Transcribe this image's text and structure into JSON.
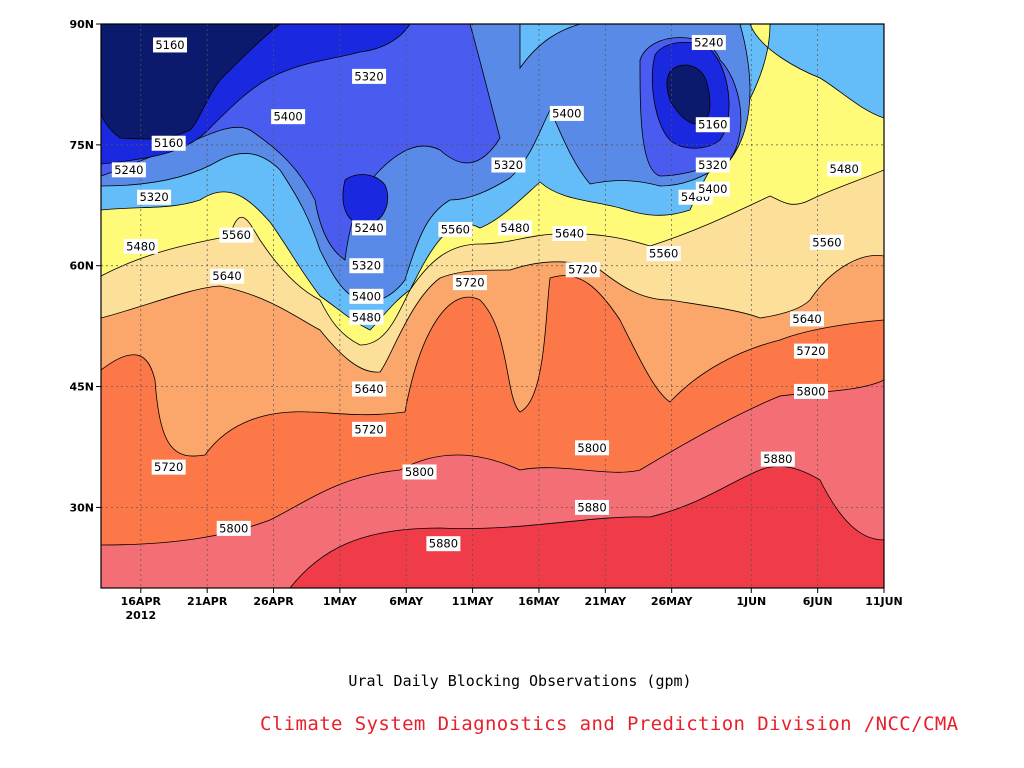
{
  "chart_data": {
    "type": "contour",
    "xlabel": "Ural Daily Blocking Observations (gpm)",
    "credit": "Climate System Diagnostics and Prediction Division /NCC/CMA",
    "x_ticks": [
      "16APR",
      "21APR",
      "26APR",
      "1MAY",
      "6MAY",
      "11MAY",
      "16MAY",
      "21MAY",
      "26MAY",
      "1JUN",
      "6JUN",
      "11JUN"
    ],
    "x_tick_days": [
      16,
      21,
      26,
      31,
      36,
      41,
      46,
      51,
      56,
      62,
      67,
      72
    ],
    "x_year": "2012",
    "xlim_days": [
      13,
      72
    ],
    "ylim_lat": [
      20,
      90
    ],
    "y_ticks": [
      {
        "label": "90N",
        "lat": 90
      },
      {
        "label": "75N",
        "lat": 75
      },
      {
        "label": "60N",
        "lat": 60
      },
      {
        "label": "45N",
        "lat": 45
      },
      {
        "label": "30N",
        "lat": 30
      }
    ],
    "grid": "dotted",
    "levels": [
      5160,
      5240,
      5320,
      5400,
      5480,
      5560,
      5640,
      5720,
      5800,
      5880
    ],
    "fill_colors": [
      "#0c1a6e",
      "#1a28e0",
      "#4a5cf0",
      "#5a8ae8",
      "#64bcf8",
      "#fffa78",
      "#fce09a",
      "#fba66a",
      "#fc7848",
      "#f46e76",
      "#f03c48"
    ],
    "labels": [
      {
        "text": "5160",
        "day": 18.2,
        "lat": 87.4
      },
      {
        "text": "5160",
        "day": 18.1,
        "lat": 75.2
      },
      {
        "text": "5240",
        "day": 15.1,
        "lat": 71.9
      },
      {
        "text": "5320",
        "day": 17.0,
        "lat": 68.5
      },
      {
        "text": "5480",
        "day": 16.0,
        "lat": 62.4
      },
      {
        "text": "5560",
        "day": 23.2,
        "lat": 63.8
      },
      {
        "text": "5640",
        "day": 22.5,
        "lat": 58.7
      },
      {
        "text": "5400",
        "day": 27.1,
        "lat": 78.5
      },
      {
        "text": "5320",
        "day": 33.2,
        "lat": 83.5
      },
      {
        "text": "5240",
        "day": 33.2,
        "lat": 64.7
      },
      {
        "text": "5320",
        "day": 33.0,
        "lat": 60.0
      },
      {
        "text": "5400",
        "day": 33.0,
        "lat": 56.2
      },
      {
        "text": "5480",
        "day": 33.0,
        "lat": 53.6
      },
      {
        "text": "5640",
        "day": 33.2,
        "lat": 44.7
      },
      {
        "text": "5720",
        "day": 33.2,
        "lat": 39.7
      },
      {
        "text": "5560",
        "day": 39.7,
        "lat": 64.5
      },
      {
        "text": "5720",
        "day": 40.8,
        "lat": 57.9
      },
      {
        "text": "5320",
        "day": 43.7,
        "lat": 72.5
      },
      {
        "text": "5480",
        "day": 44.2,
        "lat": 64.7
      },
      {
        "text": "5400",
        "day": 48.1,
        "lat": 78.9
      },
      {
        "text": "5640",
        "day": 48.3,
        "lat": 64.0
      },
      {
        "text": "5720",
        "day": 49.3,
        "lat": 59.5
      },
      {
        "text": "5560",
        "day": 55.4,
        "lat": 61.5
      },
      {
        "text": "5480",
        "day": 57.8,
        "lat": 68.5
      },
      {
        "text": "5400",
        "day": 59.1,
        "lat": 69.5
      },
      {
        "text": "5320",
        "day": 59.1,
        "lat": 72.5
      },
      {
        "text": "5240",
        "day": 58.8,
        "lat": 87.7
      },
      {
        "text": "5160",
        "day": 59.1,
        "lat": 77.5
      },
      {
        "text": "5480",
        "day": 69.0,
        "lat": 72.0
      },
      {
        "text": "5560",
        "day": 67.7,
        "lat": 62.9
      },
      {
        "text": "5640",
        "day": 66.2,
        "lat": 53.4
      },
      {
        "text": "5720",
        "day": 66.5,
        "lat": 49.4
      },
      {
        "text": "5800",
        "day": 66.5,
        "lat": 44.4
      },
      {
        "text": "5880",
        "day": 64.0,
        "lat": 36.0
      },
      {
        "text": "5720",
        "day": 18.1,
        "lat": 35.0
      },
      {
        "text": "5800",
        "day": 37.0,
        "lat": 34.4
      },
      {
        "text": "5800",
        "day": 50.0,
        "lat": 37.4
      },
      {
        "text": "5800",
        "day": 23.0,
        "lat": 27.4
      },
      {
        "text": "5880",
        "day": 50.0,
        "lat": 30.0
      },
      {
        "text": "5880",
        "day": 38.8,
        "lat": 25.5
      }
    ]
  }
}
